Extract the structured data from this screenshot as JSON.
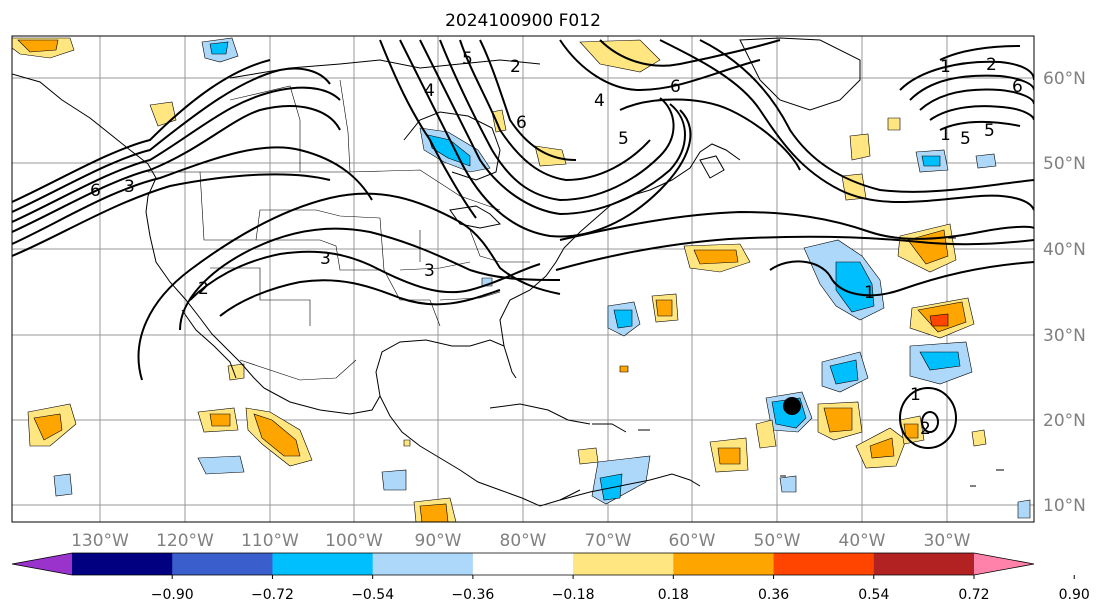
{
  "title": "2024100900 F012",
  "lon_labels": [
    "130°W",
    "120°W",
    "110°W",
    "100°W",
    "90°W",
    "80°W",
    "70°W",
    "60°W",
    "50°W",
    "40°W",
    "30°W"
  ],
  "lat_labels": [
    "60°N",
    "50°N",
    "40°N",
    "30°N",
    "20°N",
    "10°N"
  ],
  "colorbar": {
    "colors": [
      "#9933cc",
      "#000080",
      "#3a5fcd",
      "#00bfff",
      "#add8fa",
      "#ffffff",
      "#ffe680",
      "#ffa500",
      "#ff4500",
      "#b22222",
      "#ff82ab"
    ],
    "ticks": [
      "−0.90",
      "−0.72",
      "−0.54",
      "−0.36",
      "−0.18",
      "0.18",
      "0.36",
      "0.54",
      "0.72",
      "0.90"
    ]
  },
  "contour_labels": [
    "6",
    "3",
    "2",
    "3",
    "3",
    "1",
    "2",
    "6",
    "5",
    "4",
    "6",
    "5",
    "1",
    "2",
    "6",
    "4",
    "5",
    "1",
    "2",
    "1",
    "5"
  ]
}
